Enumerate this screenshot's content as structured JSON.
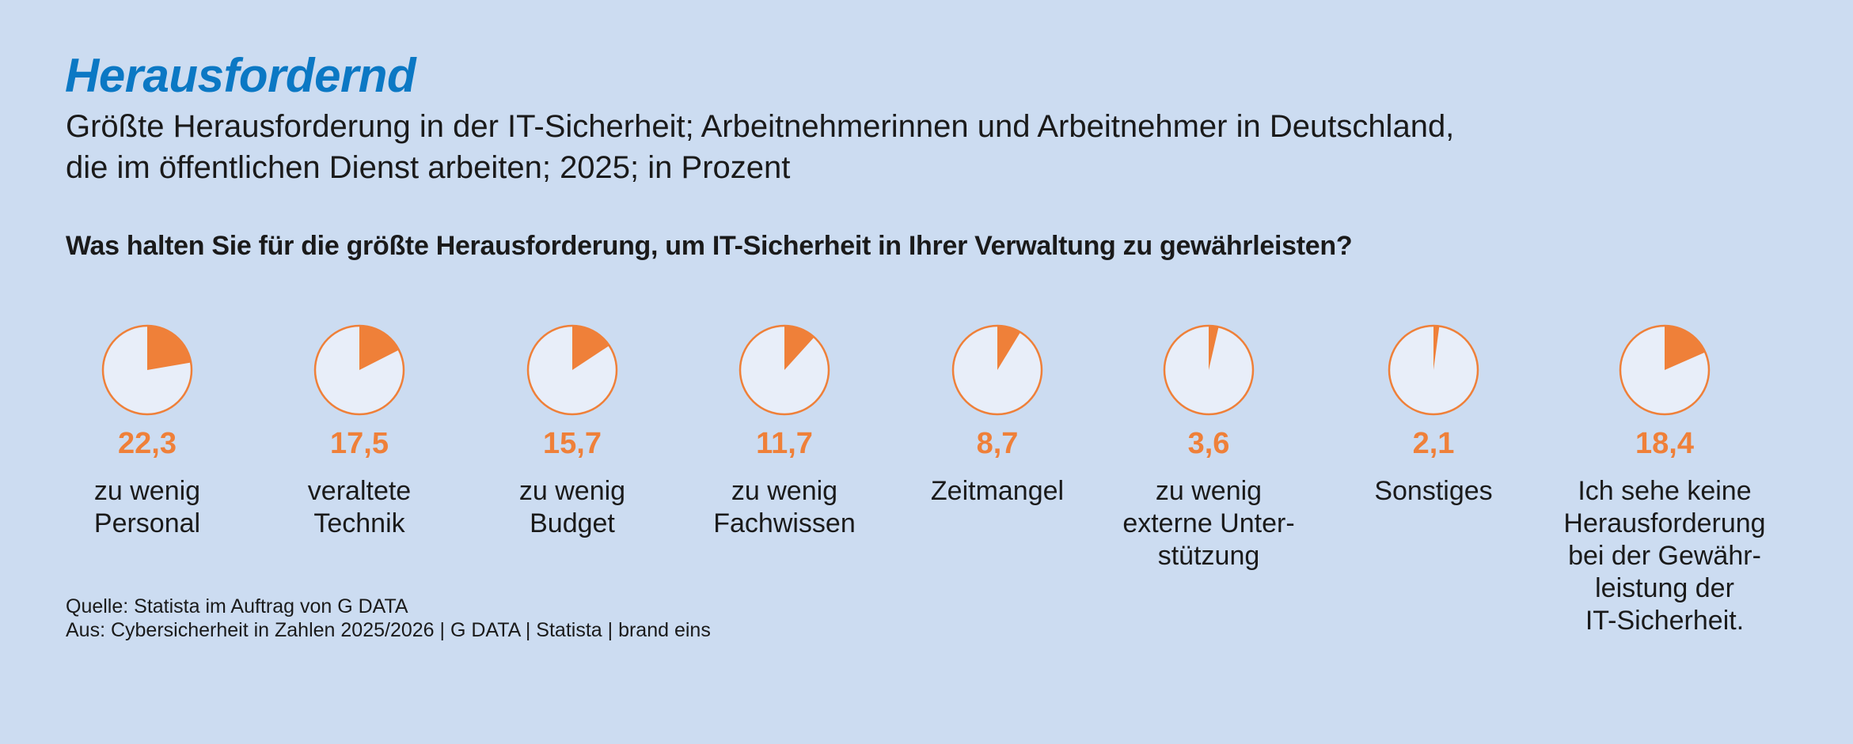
{
  "title": "Herausfordernd",
  "subtitle_line1": "Größte Herausforderung in der IT-Sicherheit; Arbeitnehmerinnen und Arbeitnehmer in Deutschland,",
  "subtitle_line2": "die im öffentlichen Dienst arbeiten; 2025; in Prozent",
  "question": "Was halten Sie für die größte Herausforderung, um IT-Sicherheit in Ihrer Verwaltung zu gewährleisten?",
  "source_line1": "Quelle: Statista im Auftrag von G DATA",
  "source_line2": "Aus: Cybersicherheit in Zahlen 2025/2026 | G DATA | Statista | brand eins",
  "colors": {
    "background": "#ccdcf1",
    "accent": "#ef8039",
    "pie_fill": "#e8eef9",
    "title": "#0b78c4"
  },
  "chart_data": {
    "type": "pie",
    "unit": "Prozent",
    "items": [
      {
        "value": 22.3,
        "value_label": "22,3",
        "label_lines": [
          "zu wenig",
          "Personal"
        ]
      },
      {
        "value": 17.5,
        "value_label": "17,5",
        "label_lines": [
          "veraltete",
          "Technik"
        ]
      },
      {
        "value": 15.7,
        "value_label": "15,7",
        "label_lines": [
          "zu wenig",
          "Budget"
        ]
      },
      {
        "value": 11.7,
        "value_label": "11,7",
        "label_lines": [
          "zu wenig",
          "Fachwissen"
        ]
      },
      {
        "value": 8.7,
        "value_label": "8,7",
        "label_lines": [
          "Zeitmangel"
        ]
      },
      {
        "value": 3.6,
        "value_label": "3,6",
        "label_lines": [
          "zu wenig",
          "externe Unter-",
          "stützung"
        ]
      },
      {
        "value": 2.1,
        "value_label": "2,1",
        "label_lines": [
          "Sonstiges"
        ]
      },
      {
        "value": 18.4,
        "value_label": "18,4",
        "label_lines": [
          "Ich sehe keine",
          "Herausforderung",
          "bei der Gewähr-",
          "leistung der",
          "IT-Sicherheit."
        ]
      }
    ]
  }
}
